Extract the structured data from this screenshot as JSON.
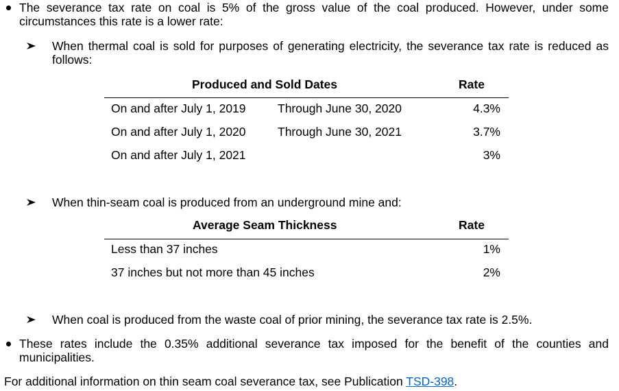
{
  "bullets": [
    {
      "text": "The severance tax rate on coal is 5% of the gross value of the coal produced. However, under some circumstances this rate is a lower rate:"
    },
    {
      "text": "These rates include the 0.35% additional severance tax imposed for the benefit of the counties and municipalities."
    }
  ],
  "subitems": [
    {
      "text": "When thermal coal is sold for purposes of generating electricity, the severance tax rate is reduced as follows:"
    },
    {
      "text": "When thin-seam coal is produced from an underground mine and:"
    },
    {
      "text": "When coal is produced from the waste coal of prior mining, the severance tax rate is 2.5%."
    }
  ],
  "thermal_table": {
    "headers": {
      "dates": "Produced and Sold Dates",
      "rate": "Rate"
    },
    "rows": [
      {
        "start": "On and after July 1, 2019",
        "end": "Through June 30, 2020",
        "rate": "4.3%"
      },
      {
        "start": "On and after July 1, 2020",
        "end": "Through June 30, 2021",
        "rate": "3.7%"
      },
      {
        "start": "On and after July 1, 2021",
        "end": "",
        "rate": "3%"
      }
    ]
  },
  "seam_table": {
    "headers": {
      "thickness": "Average Seam Thickness",
      "rate": "Rate"
    },
    "rows": [
      {
        "thickness": "Less than 37 inches",
        "rate": "1%"
      },
      {
        "thickness": "37 inches but not more than 45 inches",
        "rate": "2%"
      }
    ]
  },
  "footer": {
    "text_before": "For additional information on thin seam coal severance tax, see Publication ",
    "link_text": "TSD-398",
    "text_after": "."
  },
  "colors": {
    "link": "#0563c1",
    "text": "#000000"
  }
}
